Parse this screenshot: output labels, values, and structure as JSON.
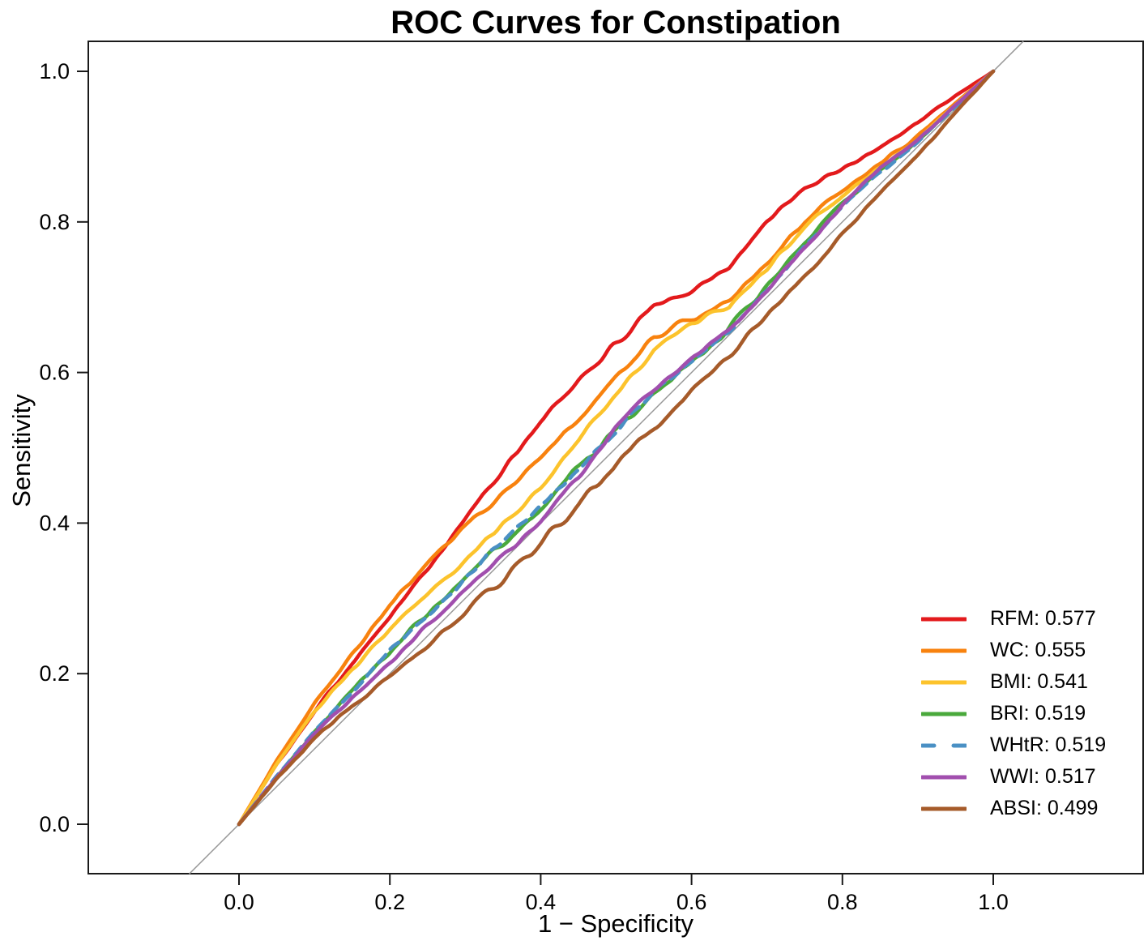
{
  "title": "ROC Curves for Constipation",
  "chart_data": {
    "type": "line",
    "title": "ROC Curves for Constipation",
    "xlabel": "1 − Specificity",
    "ylabel": "Sensitivity",
    "xlim": [
      0,
      1
    ],
    "ylim": [
      0,
      1
    ],
    "grid": false,
    "legend_position": "bottom-right",
    "x_ticks": [
      0.0,
      0.2,
      0.4,
      0.6,
      0.8,
      1.0
    ],
    "x_tick_labels": [
      "0.0",
      "0.2",
      "0.4",
      "0.6",
      "0.8",
      "1.0"
    ],
    "y_ticks": [
      0.0,
      0.2,
      0.4,
      0.6,
      0.8,
      1.0
    ],
    "y_tick_labels": [
      "0.0",
      "0.2",
      "0.4",
      "0.6",
      "0.8",
      "1.0"
    ],
    "reference_line": {
      "type": "chance-diagonal",
      "color": "#999999",
      "from": [
        -0.066,
        -0.066
      ],
      "to": [
        1.04,
        1.04
      ]
    },
    "anchor_x": [
      0,
      0.05,
      0.1,
      0.15,
      0.2,
      0.25,
      0.3,
      0.35,
      0.4,
      0.45,
      0.5,
      0.55,
      0.6,
      0.65,
      0.7,
      0.75,
      0.8,
      0.85,
      0.9,
      0.95,
      1
    ],
    "series": [
      {
        "name": "RFM",
        "auc": "0.577",
        "legend_label": "RFM: 0.577",
        "color": "#e31a1c",
        "dashed": false,
        "seed": 101,
        "dev": [
          0,
          0.03,
          0.05,
          0.065,
          0.075,
          0.09,
          0.105,
          0.12,
          0.135,
          0.14,
          0.138,
          0.135,
          0.11,
          0.092,
          0.098,
          0.095,
          0.07,
          0.05,
          0.032,
          0.018,
          0
        ]
      },
      {
        "name": "WC",
        "auc": "0.555",
        "legend_label": "WC: 0.555",
        "color": "#f8820e",
        "dashed": false,
        "seed": 202,
        "dev": [
          0,
          0.035,
          0.06,
          0.075,
          0.09,
          0.095,
          0.095,
          0.09,
          0.088,
          0.09,
          0.092,
          0.095,
          0.07,
          0.045,
          0.045,
          0.05,
          0.04,
          0.028,
          0.014,
          0.008,
          0
        ]
      },
      {
        "name": "BMI",
        "auc": "0.541",
        "legend_label": "BMI: 0.541",
        "color": "#fcc32c",
        "dashed": false,
        "seed": 303,
        "dev": [
          0,
          0.03,
          0.05,
          0.055,
          0.058,
          0.055,
          0.05,
          0.048,
          0.048,
          0.06,
          0.07,
          0.08,
          0.065,
          0.035,
          0.038,
          0.042,
          0.035,
          0.022,
          0.01,
          0.006,
          0
        ]
      },
      {
        "name": "BRI",
        "auc": "0.519",
        "legend_label": "BRI: 0.519",
        "color": "#4aa93c",
        "dashed": false,
        "seed": 404,
        "dev": [
          0,
          0.012,
          0.022,
          0.027,
          0.028,
          0.03,
          0.028,
          0.024,
          0.02,
          0.022,
          0.025,
          0.02,
          0.012,
          0.008,
          0.012,
          0.022,
          0.025,
          0.018,
          0.008,
          0.004,
          0
        ]
      },
      {
        "name": "WHtR",
        "auc": "0.519",
        "legend_label": "WHtR: 0.519",
        "color": "#4a90c4",
        "dashed": true,
        "seed": 505,
        "dev": [
          0,
          0.014,
          0.024,
          0.025,
          0.031,
          0.027,
          0.025,
          0.027,
          0.022,
          0.019,
          0.022,
          0.023,
          0.014,
          0.005,
          0.01,
          0.019,
          0.022,
          0.015,
          0.006,
          0.003,
          0
        ]
      },
      {
        "name": "WWI",
        "auc": "0.517",
        "legend_label": "WWI: 0.517",
        "color": "#a14fae",
        "dashed": false,
        "seed": 606,
        "dev": [
          0,
          0.012,
          0.02,
          0.018,
          0.014,
          0.015,
          0.012,
          0.006,
          0.002,
          0.012,
          0.026,
          0.028,
          0.018,
          0.008,
          0.008,
          0.015,
          0.022,
          0.022,
          0.01,
          0.005,
          0
        ]
      },
      {
        "name": "ABSI",
        "auc": "0.499",
        "legend_label": "ABSI: 0.499",
        "color": "#a65b2a",
        "dashed": false,
        "seed": 707,
        "dev": [
          0,
          0.01,
          0.014,
          0.006,
          -0.004,
          -0.012,
          -0.018,
          -0.024,
          -0.027,
          -0.024,
          -0.021,
          -0.024,
          -0.027,
          -0.027,
          -0.024,
          -0.02,
          -0.016,
          -0.013,
          -0.01,
          -0.005,
          0
        ]
      }
    ]
  }
}
